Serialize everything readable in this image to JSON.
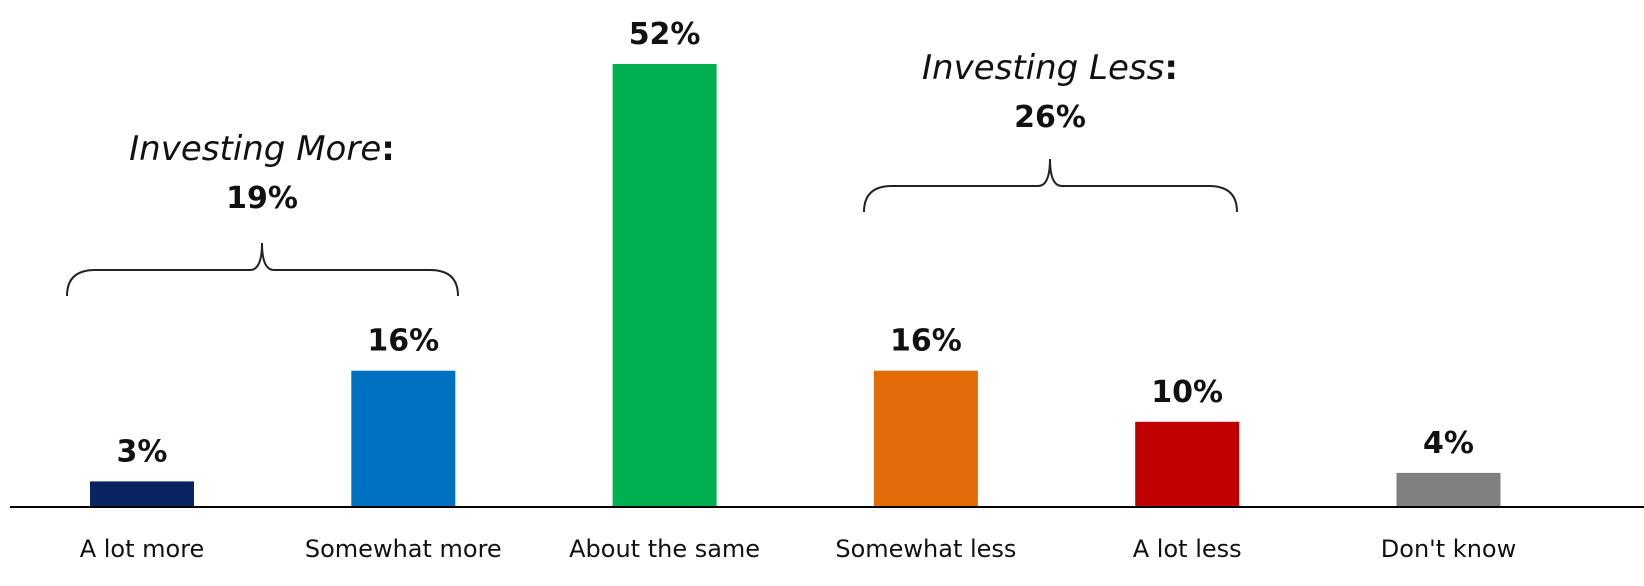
{
  "chart_data": {
    "type": "bar",
    "title": "",
    "xlabel": "",
    "ylabel": "",
    "ylim": [
      0,
      52
    ],
    "grid": false,
    "categories": [
      "A lot more",
      "Somewhat more",
      "About the same",
      "Somewhat less",
      "A lot less",
      "Don't know"
    ],
    "values": [
      3,
      16,
      52,
      16,
      10,
      4
    ],
    "value_labels": [
      "3%",
      "16%",
      "52%",
      "16%",
      "10%",
      "4%"
    ],
    "colors": [
      "#0a2463",
      "#0070c0",
      "#00b050",
      "#e36c0a",
      "#c00000",
      "#808080"
    ],
    "annotations": [
      {
        "label": "Investing More",
        "suffix": ":",
        "value": "19%",
        "spans": [
          "A lot more",
          "Somewhat more"
        ]
      },
      {
        "label": "Investing Less",
        "suffix": ":",
        "value": "26%",
        "spans": [
          "Somewhat less",
          "A lot less"
        ]
      }
    ]
  }
}
